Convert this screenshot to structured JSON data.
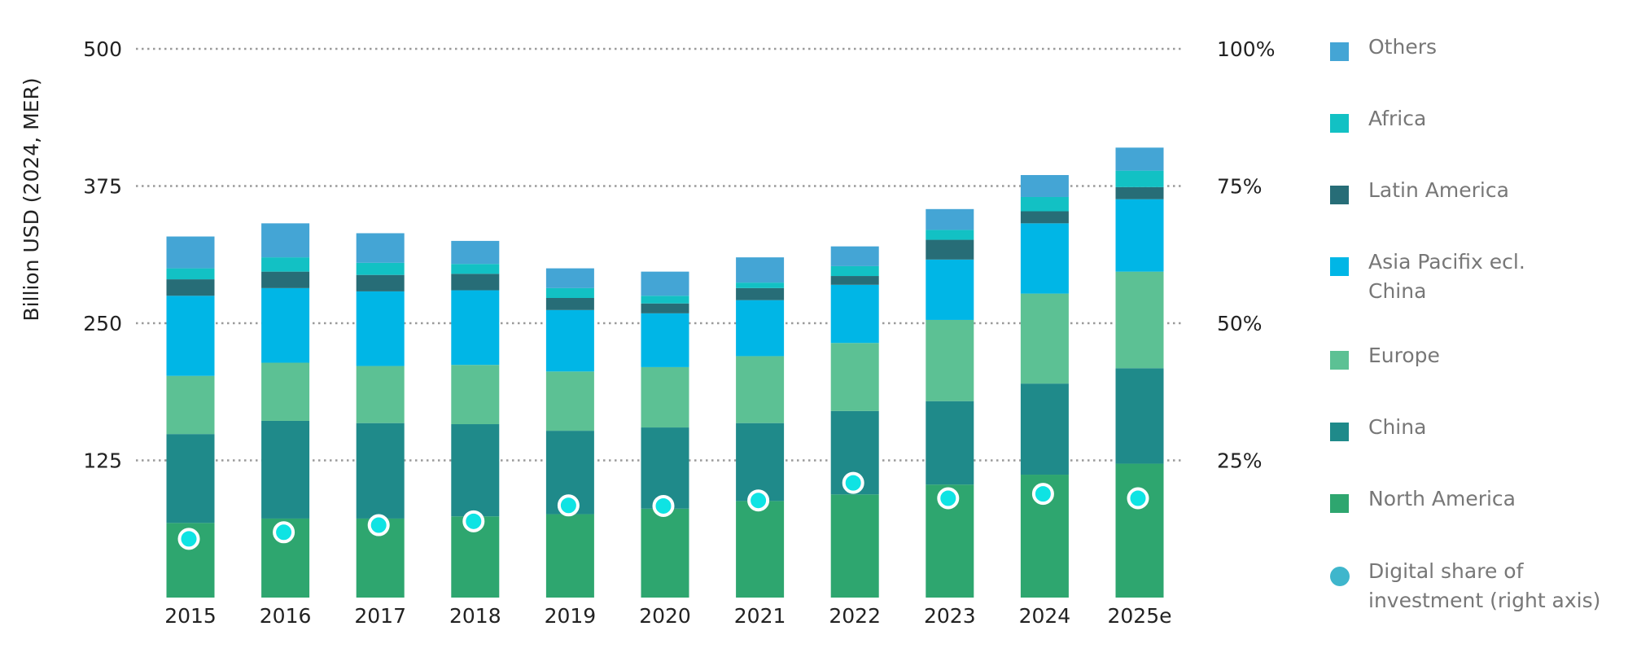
{
  "chart_data": {
    "type": "bar",
    "stacked": true,
    "title": "",
    "xlabel": "",
    "ylabel": "Billion USD (2024, MER)",
    "ylim": [
      0,
      500
    ],
    "y_ticks": [
      "125",
      "250",
      "375",
      "500"
    ],
    "y2lim": [
      0,
      1
    ],
    "y2_ticks": [
      "25%",
      "50%",
      "75%",
      "100%"
    ],
    "grid": "horizontal dotted",
    "legend_position": "right",
    "categories": [
      "2015",
      "2016",
      "2017",
      "2018",
      "2019",
      "2020",
      "2021",
      "2022",
      "2023",
      "2024",
      "2025e"
    ],
    "series": [
      {
        "name": "North America",
        "color": "#2ea66f",
        "values": [
          68,
          72,
          72,
          74,
          76,
          81,
          88,
          94,
          103,
          112,
          122
        ]
      },
      {
        "name": "China",
        "color": "#1f8a8a",
        "values": [
          81,
          89,
          87,
          84,
          76,
          74,
          71,
          76,
          76,
          83,
          87
        ]
      },
      {
        "name": "Europe",
        "color": "#5cc194",
        "values": [
          53,
          53,
          52,
          54,
          54,
          55,
          61,
          62,
          74,
          82,
          88
        ]
      },
      {
        "name": "Asia Pacifix ecl.\nChina",
        "color": "#00b6e6",
        "values": [
          73,
          68,
          68,
          68,
          56,
          49,
          51,
          53,
          55,
          64,
          66
        ]
      },
      {
        "name": "Latin America",
        "color": "#276d77",
        "values": [
          15,
          15,
          15,
          15,
          11,
          9,
          11,
          8,
          18,
          11,
          11
        ]
      },
      {
        "name": "Africa",
        "color": "#12c1c4",
        "values": [
          10,
          13,
          11,
          9,
          9,
          7,
          5,
          9,
          9,
          13,
          15
        ]
      },
      {
        "name": "Others",
        "color": "#44a5d5",
        "values": [
          29,
          31,
          27,
          21,
          18,
          22,
          23,
          18,
          19,
          20,
          21
        ]
      },
      {
        "name": "Digital share of\ninvestment (right axis)",
        "color": "#0fe3e3",
        "type": "scatter",
        "values": [
          0.107,
          0.119,
          0.132,
          0.139,
          0.168,
          0.167,
          0.177,
          0.209,
          0.181,
          0.189,
          0.181
        ]
      }
    ],
    "legend_order": [
      "Others",
      "Africa",
      "Latin America",
      "Asia Pacifix ecl.\nChina",
      "Europe",
      "China",
      "North America",
      "Digital share of\ninvestment (right axis)"
    ],
    "legend_marker_color_scatter": "#3fb6cc"
  }
}
